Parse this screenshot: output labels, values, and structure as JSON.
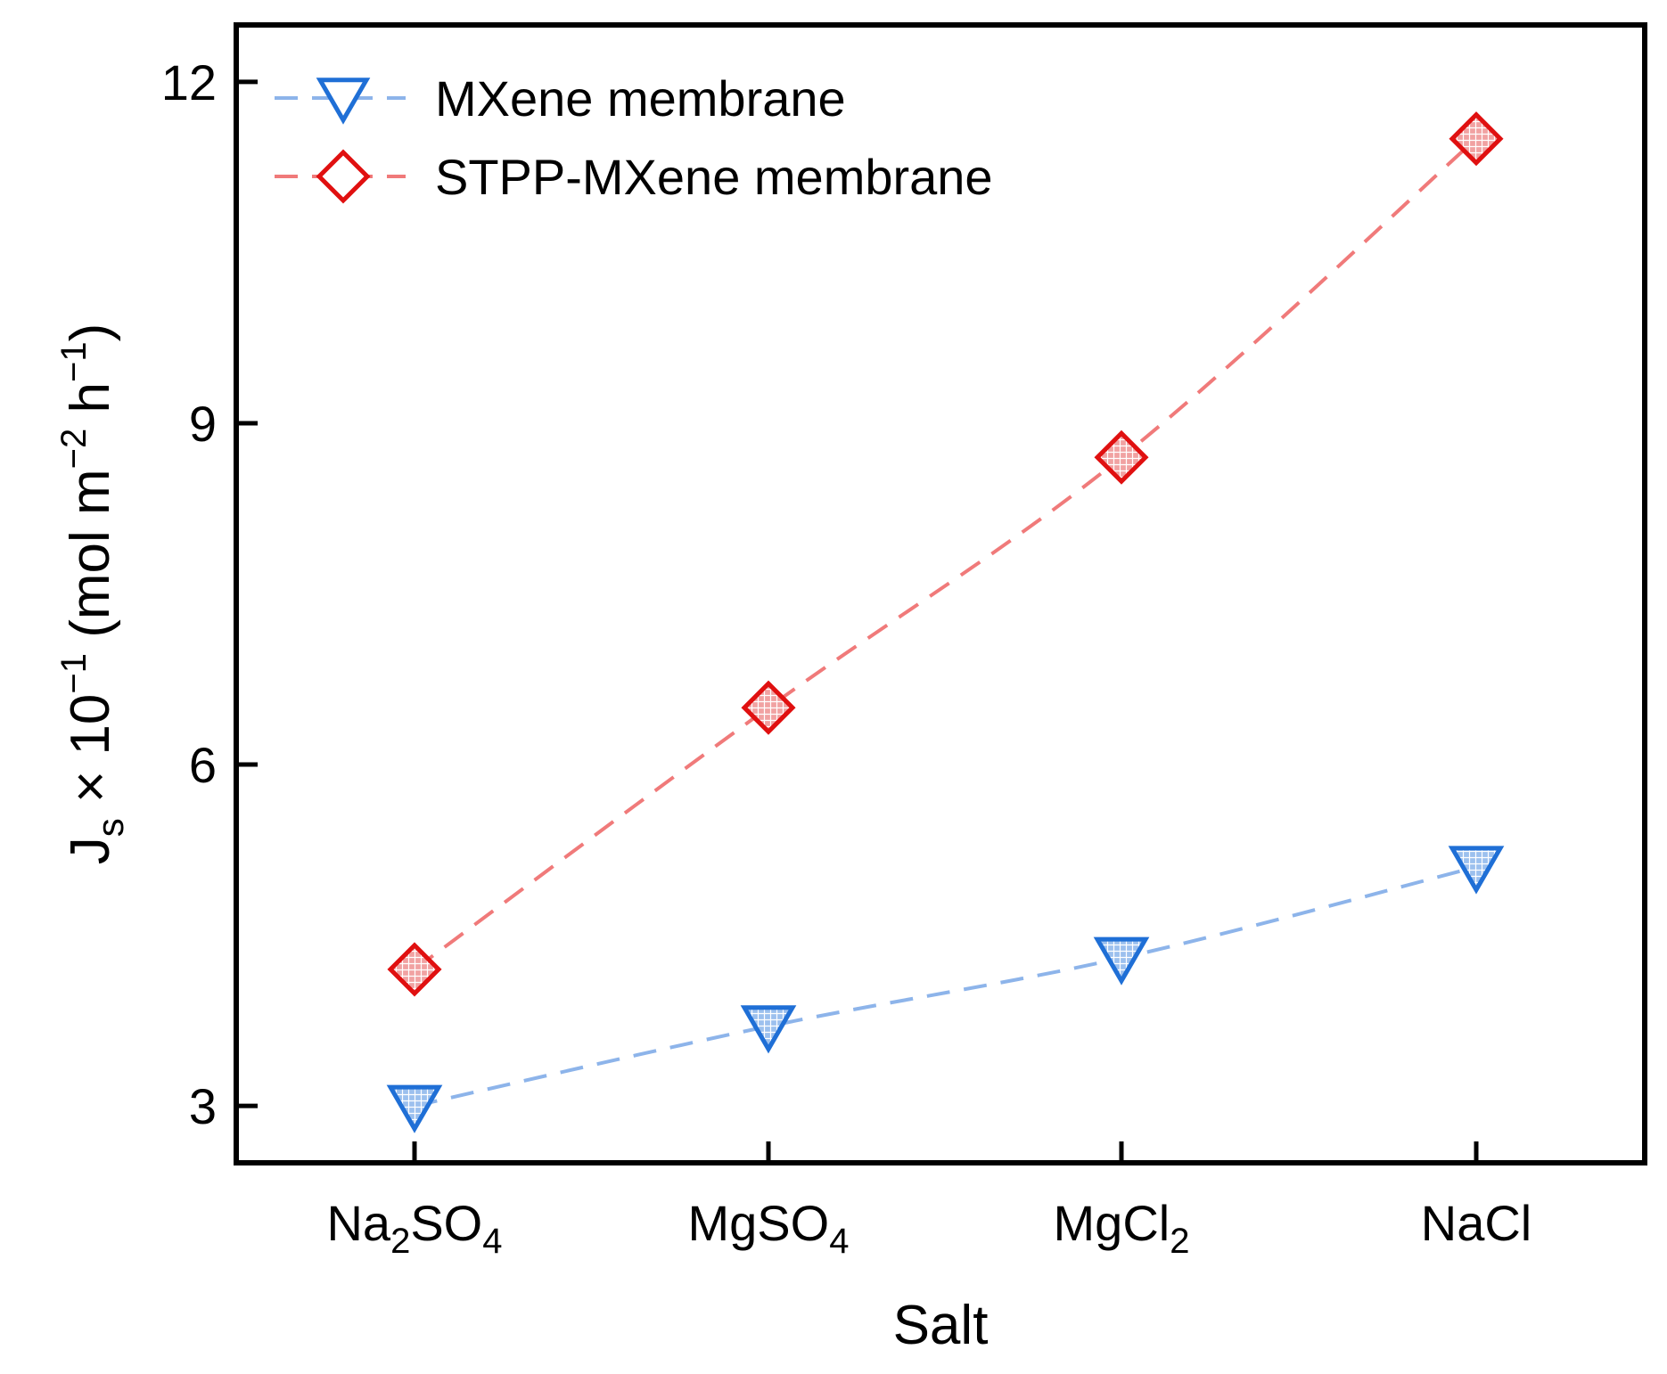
{
  "chart_data": {
    "type": "line",
    "categories": [
      {
        "base": "Na",
        "sub1": "2",
        "mid": "SO",
        "sub2": "4"
      },
      {
        "base": "MgSO",
        "sub1": "4",
        "mid": "",
        "sub2": ""
      },
      {
        "base": "MgCl",
        "sub1": "2",
        "mid": "",
        "sub2": ""
      },
      {
        "base": "NaCl",
        "sub1": "",
        "mid": "",
        "sub2": ""
      }
    ],
    "series": [
      {
        "name": "MXene membrane",
        "marker": "triangle-down",
        "line_color": "#8db4ea",
        "marker_color": "#1f6fd6",
        "values": [
          3.0,
          3.7,
          4.3,
          5.1
        ]
      },
      {
        "name": "STPP-MXene membrane",
        "marker": "diamond",
        "line_color": "#f07a7a",
        "marker_color": "#e01010",
        "values": [
          4.2,
          6.5,
          8.7,
          11.5
        ]
      }
    ],
    "xlabel": "Salt",
    "ylabel": {
      "main": "J",
      "sub": "s",
      "mid": " × 10",
      "exp1": "−1",
      "unit1": " (mol m",
      "exp2": "−2",
      "unit2": " h",
      "exp3": "−1",
      "end": ")"
    },
    "ylim": [
      2.5,
      12.5
    ],
    "yticks": [
      3,
      6,
      9,
      12
    ],
    "legend_position": "top-left",
    "grid": false
  }
}
